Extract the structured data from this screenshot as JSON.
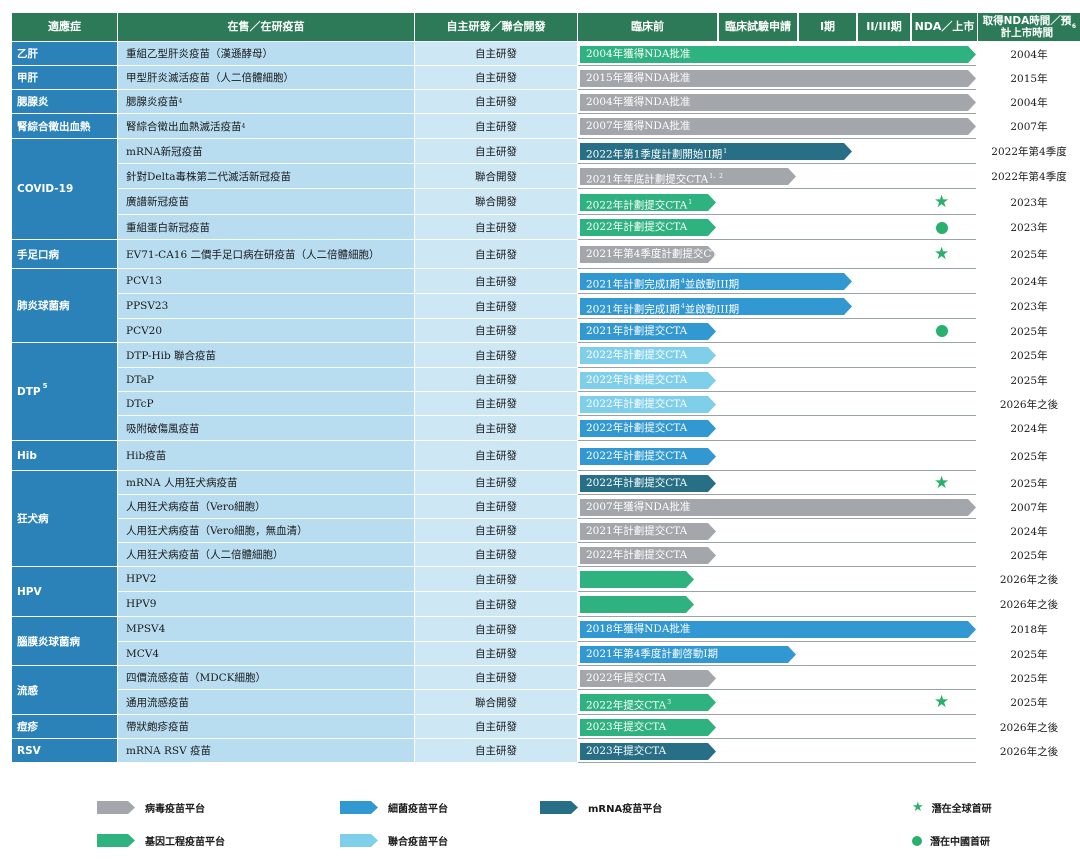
{
  "colors": {
    "virus": "#a3a6aa",
    "bacteria": "#3198d1",
    "mrna": "#266f86",
    "genetic": "#2eb27f",
    "joint": "#7fcfeb",
    "mark": "#28b06d"
  },
  "headers": {
    "disease": "適應症",
    "vaccine": "在售／在研疫苗",
    "dev": "自主研發／聯合開發",
    "ph0": "臨床前",
    "ph1": "臨床試驗申請",
    "ph2": "I期",
    "ph3": "II/III期",
    "ph4": "NDA／上市",
    "time": "取得NDA時間／預計上市時間",
    "time_sup": "6"
  },
  "diseases": [
    {
      "name": "乙肝",
      "sup": ""
    },
    {
      "name": "甲肝",
      "sup": ""
    },
    {
      "name": "腮腺炎",
      "sup": ""
    },
    {
      "name": "腎綜合徵出血熱",
      "sup": ""
    },
    {
      "name": "COVID-19",
      "sup": ""
    },
    {
      "name": "手足口病",
      "sup": ""
    },
    {
      "name": "肺炎球菌病",
      "sup": ""
    },
    {
      "name": "DTP",
      "sup": "5"
    },
    {
      "name": "Hib",
      "sup": ""
    },
    {
      "name": "狂犬病",
      "sup": ""
    },
    {
      "name": "HPV",
      "sup": ""
    },
    {
      "name": "腦膜炎球菌病",
      "sup": ""
    },
    {
      "name": "流感",
      "sup": ""
    },
    {
      "name": "痘疹",
      "sup": ""
    },
    {
      "name": "RSV",
      "sup": ""
    }
  ],
  "rows": [
    {
      "vaccine": "重組乙型肝炎疫苗（漢遜酵母）",
      "dev": "自主研發",
      "bar": "2004年獲得NDA批准",
      "bar_sup": "",
      "time": "2004年",
      "platform": "genetic",
      "mark": ""
    },
    {
      "vaccine": "甲型肝炎滅活疫苗（人二倍體細胞）",
      "dev": "自主研發",
      "bar": "2015年獲得NDA批准",
      "bar_sup": "",
      "time": "2015年",
      "platform": "virus",
      "mark": ""
    },
    {
      "vaccine": "腮腺炎疫苗",
      "vaccine_sup": "4",
      "dev": "自主研發",
      "bar": "2004年獲得NDA批准",
      "bar_sup": "",
      "time": "2004年",
      "platform": "virus",
      "mark": ""
    },
    {
      "vaccine": "腎綜合徵出血熱滅活疫苗",
      "vaccine_sup": "4",
      "dev": "自主研發",
      "bar": "2007年獲得NDA批准",
      "bar_sup": "",
      "time": "2007年",
      "platform": "virus",
      "mark": ""
    },
    {
      "vaccine": "mRNA新冠疫苗",
      "dev": "自主研發",
      "bar": "2022年第1季度計劃開始II期",
      "bar_sup": "1",
      "time": "2022年第4季度",
      "platform": "mrna",
      "mark": ""
    },
    {
      "vaccine": "針對Delta毒株第二代滅活新冠疫苗",
      "dev": "聯合開發",
      "bar": "2021年年底計劃提交CTA",
      "bar_sup": "1、2",
      "time": "2022年第4季度",
      "platform": "virus",
      "mark": ""
    },
    {
      "vaccine": "廣譜新冠疫苗",
      "dev": "聯合開發",
      "bar": "2022年計劃提交CTA",
      "bar_sup": "1",
      "time": "2023年",
      "platform": "genetic",
      "mark": "star"
    },
    {
      "vaccine": "重組蛋白新冠疫苗",
      "dev": "自主研發",
      "bar": "2022年計劃提交CTA",
      "bar_sup": "",
      "time": "2023年",
      "platform": "genetic",
      "mark": "dot"
    },
    {
      "vaccine": "EV71-CA16 二價手足口病在研疫苗（人二倍體細胞）",
      "dev": "自主研發",
      "bar": "2021年第4季度計劃提交CTA",
      "bar_sup": "",
      "time": "2025年",
      "platform": "virus",
      "mark": "star"
    },
    {
      "vaccine": "PCV13",
      "dev": "自主研發",
      "bar": "2021年計劃完成I期",
      "bar_sup": "4",
      "bar2": "並啟動III期",
      "time": "2024年",
      "platform": "bacteria",
      "mark": ""
    },
    {
      "vaccine": "PPSV23",
      "dev": "自主研發",
      "bar": "2021年計劃完成I期",
      "bar_sup": "4",
      "bar2": "並啟動III期",
      "time": "2023年",
      "platform": "bacteria",
      "mark": ""
    },
    {
      "vaccine": "PCV20",
      "dev": "自主研發",
      "bar": "2021年計劃提交CTA",
      "bar_sup": "",
      "time": "2025年",
      "platform": "bacteria",
      "mark": "dot"
    },
    {
      "vaccine": "DTP-Hib 聯合疫苗",
      "dev": "自主研發",
      "bar": "2022年計劃提交CTA",
      "bar_sup": "",
      "time": "2025年",
      "platform": "joint",
      "mark": ""
    },
    {
      "vaccine": "DTaP",
      "dev": "自主研發",
      "bar": "2022年計劃提交CTA",
      "bar_sup": "",
      "time": "2025年",
      "platform": "joint",
      "mark": ""
    },
    {
      "vaccine": "DTcP",
      "dev": "自主研發",
      "bar": "2022年計劃提交CTA",
      "bar_sup": "",
      "time": "2026年之後",
      "platform": "joint",
      "mark": ""
    },
    {
      "vaccine": "吸附破傷風疫苗",
      "dev": "自主研發",
      "bar": "2022年計劃提交CTA",
      "bar_sup": "",
      "time": "2024年",
      "platform": "bacteria",
      "mark": ""
    },
    {
      "vaccine": "Hib疫苗",
      "dev": "自主研發",
      "bar": "2022年計劃提交CTA",
      "bar_sup": "",
      "time": "2025年",
      "platform": "bacteria",
      "mark": ""
    },
    {
      "vaccine": "mRNA 人用狂犬病疫苗",
      "dev": "自主研發",
      "bar": "2022年計劃提交CTA",
      "bar_sup": "",
      "time": "2025年",
      "platform": "mrna",
      "mark": "star"
    },
    {
      "vaccine": "人用狂犬病疫苗（Vero細胞）",
      "dev": "自主研發",
      "bar": "2007年獲得NDA批准",
      "bar_sup": "",
      "time": "2007年",
      "platform": "virus",
      "mark": ""
    },
    {
      "vaccine": "人用狂犬病疫苗（Vero細胞，無血清）",
      "dev": "自主研發",
      "bar": "2021年計劃提交CTA",
      "bar_sup": "",
      "time": "2024年",
      "platform": "virus",
      "mark": ""
    },
    {
      "vaccine": "人用狂犬病疫苗（人二倍體細胞）",
      "dev": "自主研發",
      "bar": "2022年計劃提交CTA",
      "bar_sup": "",
      "time": "2025年",
      "platform": "virus",
      "mark": ""
    },
    {
      "vaccine": "HPV2",
      "dev": "自主研發",
      "bar": "",
      "bar_sup": "",
      "time": "2026年之後",
      "platform": "genetic",
      "mark": ""
    },
    {
      "vaccine": "HPV9",
      "dev": "自主研發",
      "bar": "",
      "bar_sup": "",
      "time": "2026年之後",
      "platform": "genetic",
      "mark": ""
    },
    {
      "vaccine": "MPSV4",
      "dev": "自主研發",
      "bar": "2018年獲得NDA批准",
      "bar_sup": "",
      "time": "2018年",
      "platform": "bacteria",
      "mark": ""
    },
    {
      "vaccine": "MCV4",
      "dev": "自主研發",
      "bar": "2021年第4季度計劃啓動I期",
      "bar_sup": "",
      "time": "2025年",
      "platform": "bacteria",
      "mark": ""
    },
    {
      "vaccine": "四價流感疫苗（MDCK細胞）",
      "dev": "自主研發",
      "bar": "2022年提交CTA",
      "bar_sup": "",
      "time": "2025年",
      "platform": "virus",
      "mark": ""
    },
    {
      "vaccine": "通用流感疫苗",
      "dev": "聯合開發",
      "bar": "2022年提交CTA",
      "bar_sup": "3",
      "time": "2025年",
      "platform": "genetic",
      "mark": "star"
    },
    {
      "vaccine": "帶狀皰疹疫苗",
      "dev": "自主研發",
      "bar": "2023年提交CTA",
      "bar_sup": "",
      "time": "2026年之後",
      "platform": "genetic",
      "mark": ""
    },
    {
      "vaccine": "mRNA RSV 疫苗",
      "dev": "自主研發",
      "bar": "2023年提交CTA",
      "bar_sup": "",
      "time": "2026年之後",
      "platform": "mrna",
      "mark": ""
    }
  ],
  "legend": [
    {
      "label": "病毒疫苗平台",
      "platform": "virus"
    },
    {
      "label": "細菌疫苗平台",
      "platform": "bacteria"
    },
    {
      "label": "mRNA疫苗平台",
      "platform": "mrna"
    },
    {
      "label": "基因工程疫苗平台",
      "platform": "genetic"
    },
    {
      "label": "聯合疫苗平台",
      "platform": "joint"
    }
  ],
  "mark_legend": [
    {
      "label": "潛在全球首研",
      "symbol": "star"
    },
    {
      "label": "潛在中國首研",
      "symbol": "dot"
    }
  ]
}
